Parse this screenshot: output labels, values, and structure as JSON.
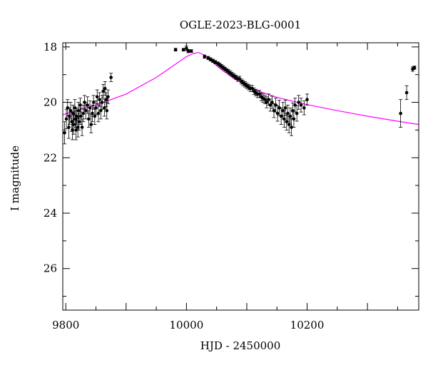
{
  "chart_data": {
    "type": "scatter",
    "title": "OGLE-2023-BLG-0001",
    "xlabel": "HJD - 2450000",
    "ylabel": "I magnitude",
    "xlim": [
      9795,
      10385
    ],
    "ylim": [
      27.5,
      17.85
    ],
    "y_inverted": true,
    "grid": false,
    "legend": "none",
    "x_ticks": [
      9800,
      10000,
      10200
    ],
    "y_ticks": [
      18,
      20,
      22,
      24,
      26
    ],
    "x_minor_step": 50,
    "y_minor_step": 1,
    "colors": {
      "data": "#000000",
      "model": "#ff00ff",
      "axes": "#000000"
    },
    "series": [
      {
        "type": "scatter_errorbar",
        "points": [
          [
            9798,
            21.1,
            0.4
          ],
          [
            9801,
            20.6,
            0.35
          ],
          [
            9803,
            20.2,
            0.3
          ],
          [
            9805,
            20.9,
            0.4
          ],
          [
            9806,
            20.5,
            0.3
          ],
          [
            9808,
            20.3,
            0.3
          ],
          [
            9810,
            20.7,
            0.35
          ],
          [
            9811,
            21.0,
            0.35
          ],
          [
            9812,
            20.4,
            0.3
          ],
          [
            9813,
            20.8,
            0.35
          ],
          [
            9815,
            20.2,
            0.3
          ],
          [
            9816,
            20.6,
            0.3
          ],
          [
            9817,
            21.0,
            0.35
          ],
          [
            9818,
            20.5,
            0.3
          ],
          [
            9820,
            20.9,
            0.35
          ],
          [
            9821,
            20.3,
            0.3
          ],
          [
            9822,
            20.7,
            0.3
          ],
          [
            9824,
            20.1,
            0.25
          ],
          [
            9825,
            20.5,
            0.3
          ],
          [
            9827,
            20.9,
            0.3
          ],
          [
            9829,
            20.4,
            0.3
          ],
          [
            9831,
            20.0,
            0.25
          ],
          [
            9833,
            20.3,
            0.3
          ],
          [
            9836,
            20.1,
            0.3
          ],
          [
            9838,
            20.6,
            0.3
          ],
          [
            9840,
            20.2,
            0.25
          ],
          [
            9842,
            20.8,
            0.3
          ],
          [
            9844,
            20.4,
            0.3
          ],
          [
            9846,
            20.0,
            0.25
          ],
          [
            9848,
            20.5,
            0.3
          ],
          [
            9850,
            20.2,
            0.25
          ],
          [
            9852,
            19.8,
            0.25
          ],
          [
            9854,
            20.4,
            0.3
          ],
          [
            9856,
            19.9,
            0.25
          ],
          [
            9858,
            20.3,
            0.3
          ],
          [
            9860,
            20.0,
            0.25
          ],
          [
            9862,
            19.6,
            0.25
          ],
          [
            9864,
            20.2,
            0.3
          ],
          [
            9865,
            19.5,
            0.25
          ],
          [
            9867,
            19.9,
            0.25
          ],
          [
            9868,
            20.3,
            0.3
          ],
          [
            9870,
            19.8,
            0.25
          ],
          [
            9875,
            19.1,
            0.15
          ],
          [
            9982,
            18.1,
            0.05
          ],
          [
            9995,
            18.1,
            0.05
          ],
          [
            10000,
            18.05,
            0.08
          ],
          [
            10003,
            18.15,
            0.06
          ],
          [
            10008,
            18.15,
            0.05
          ],
          [
            10030,
            18.35,
            0.06
          ],
          [
            10036,
            18.4,
            0.06
          ],
          [
            10040,
            18.45,
            0.06
          ],
          [
            10044,
            18.5,
            0.06
          ],
          [
            10048,
            18.55,
            0.06
          ],
          [
            10052,
            18.6,
            0.06
          ],
          [
            10055,
            18.65,
            0.07
          ],
          [
            10058,
            18.7,
            0.07
          ],
          [
            10061,
            18.75,
            0.07
          ],
          [
            10064,
            18.8,
            0.07
          ],
          [
            10067,
            18.85,
            0.07
          ],
          [
            10070,
            18.9,
            0.08
          ],
          [
            10073,
            18.95,
            0.08
          ],
          [
            10076,
            19.0,
            0.08
          ],
          [
            10079,
            19.05,
            0.08
          ],
          [
            10082,
            19.1,
            0.08
          ],
          [
            10085,
            19.15,
            0.09
          ],
          [
            10088,
            19.15,
            0.09
          ],
          [
            10091,
            19.25,
            0.09
          ],
          [
            10094,
            19.3,
            0.1
          ],
          [
            10097,
            19.35,
            0.1
          ],
          [
            10100,
            19.4,
            0.1
          ],
          [
            10103,
            19.45,
            0.1
          ],
          [
            10106,
            19.5,
            0.11
          ],
          [
            10109,
            19.5,
            0.11
          ],
          [
            10112,
            19.6,
            0.12
          ],
          [
            10115,
            19.65,
            0.12
          ],
          [
            10118,
            19.7,
            0.13
          ],
          [
            10121,
            19.7,
            0.13
          ],
          [
            10124,
            19.8,
            0.14
          ],
          [
            10127,
            19.85,
            0.15
          ],
          [
            10130,
            19.9,
            0.15
          ],
          [
            10133,
            20.0,
            0.2
          ],
          [
            10136,
            19.9,
            0.2
          ],
          [
            10139,
            20.1,
            0.22
          ],
          [
            10142,
            20.0,
            0.22
          ],
          [
            10145,
            20.3,
            0.25
          ],
          [
            10148,
            20.1,
            0.25
          ],
          [
            10151,
            20.4,
            0.28
          ],
          [
            10154,
            20.2,
            0.28
          ],
          [
            10157,
            20.5,
            0.3
          ],
          [
            10160,
            20.3,
            0.3
          ],
          [
            10162,
            20.6,
            0.3
          ],
          [
            10164,
            20.2,
            0.28
          ],
          [
            10166,
            20.7,
            0.3
          ],
          [
            10168,
            20.4,
            0.3
          ],
          [
            10170,
            20.8,
            0.3
          ],
          [
            10172,
            20.5,
            0.3
          ],
          [
            10174,
            20.9,
            0.3
          ],
          [
            10176,
            20.3,
            0.28
          ],
          [
            10178,
            20.6,
            0.3
          ],
          [
            10180,
            20.1,
            0.25
          ],
          [
            10183,
            20.4,
            0.28
          ],
          [
            10186,
            20.0,
            0.25
          ],
          [
            10190,
            20.1,
            0.25
          ],
          [
            10195,
            20.2,
            0.25
          ],
          [
            10200,
            19.9,
            0.2
          ],
          [
            10355,
            20.4,
            0.5
          ],
          [
            10365,
            19.65,
            0.25
          ],
          [
            10375,
            18.8,
            0.08
          ],
          [
            10378,
            18.75,
            0.06
          ]
        ]
      },
      {
        "type": "model_line",
        "points": [
          [
            9795,
            20.45
          ],
          [
            9850,
            20.1
          ],
          [
            9900,
            19.7
          ],
          [
            9950,
            19.1
          ],
          [
            9980,
            18.65
          ],
          [
            10000,
            18.35
          ],
          [
            10010,
            18.25
          ],
          [
            10020,
            18.2
          ],
          [
            10030,
            18.3
          ],
          [
            10040,
            18.5
          ],
          [
            10060,
            18.85
          ],
          [
            10080,
            19.15
          ],
          [
            10100,
            19.42
          ],
          [
            10120,
            19.6
          ],
          [
            10150,
            19.82
          ],
          [
            10200,
            20.08
          ],
          [
            10250,
            20.3
          ],
          [
            10300,
            20.5
          ],
          [
            10350,
            20.68
          ],
          [
            10385,
            20.8
          ]
        ]
      }
    ]
  }
}
